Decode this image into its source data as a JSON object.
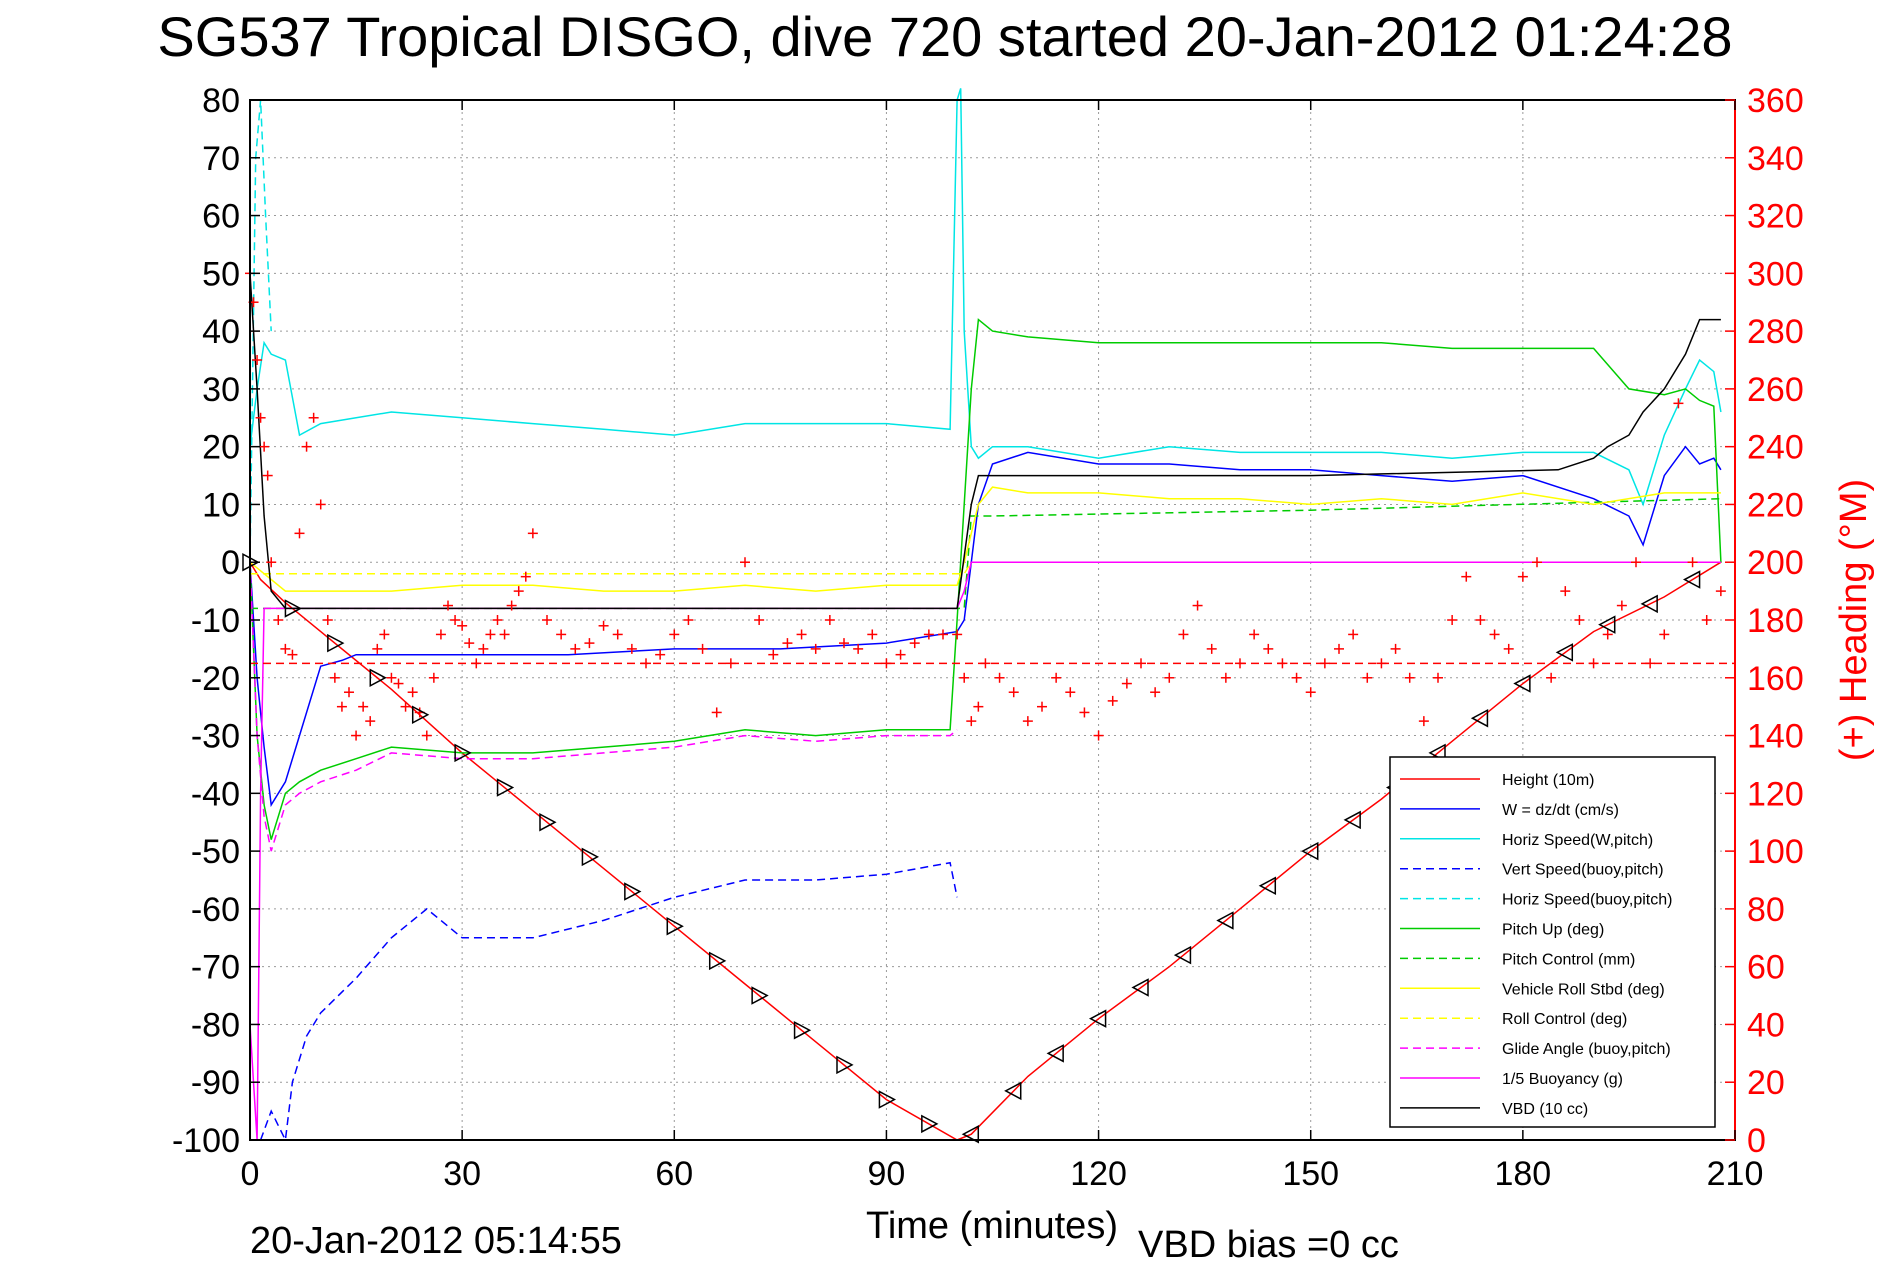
{
  "chart_data": {
    "type": "line",
    "title": "SG537 Tropical DISGO, dive 720 started 20-Jan-2012 01:24:28",
    "xlabel": "Time (minutes)",
    "ylabel_right": "(+) Heading (°M)",
    "xlim": [
      0,
      210
    ],
    "ylim": [
      -100,
      80
    ],
    "ylim_right": [
      0,
      360
    ],
    "x_ticks": [
      "0",
      "30",
      "60",
      "90",
      "120",
      "150",
      "180",
      "210"
    ],
    "y_ticks": [
      "80",
      "70",
      "60",
      "50",
      "40",
      "30",
      "20",
      "10",
      "0",
      "-10",
      "-20",
      "-30",
      "-40",
      "-50",
      "-60",
      "-70",
      "-80",
      "-90",
      "-100"
    ],
    "y_ticks_right": [
      "360",
      "340",
      "320",
      "300",
      "280",
      "260",
      "240",
      "220",
      "200",
      "180",
      "160",
      "140",
      "120",
      "100",
      "80",
      "60",
      "40",
      "20",
      "0"
    ],
    "grid": true,
    "legend_position": "bottom-right",
    "footer_left": "20-Jan-2012 05:14:55",
    "footer_right": "VBD bias =0 cc",
    "series": [
      {
        "name": "Height (10m)",
        "color": "#ff0000",
        "style": "solid",
        "x": [
          0,
          1.5,
          5,
          10,
          20,
          30,
          40,
          50,
          60,
          70,
          80,
          90,
          100,
          102,
          110,
          120,
          130,
          140,
          150,
          160,
          170,
          180,
          190,
          200,
          208
        ],
        "y": [
          0,
          -3,
          -7,
          -12,
          -22,
          -33,
          -43,
          -53,
          -63,
          -73,
          -83,
          -93,
          -100,
          -99,
          -89,
          -79,
          -70,
          -60,
          -50,
          -41,
          -31,
          -21,
          -12,
          -6,
          0
        ]
      },
      {
        "name": "W = dz/dt (cm/s)",
        "color": "#0000ff",
        "style": "solid",
        "x": [
          0,
          1,
          2,
          3,
          5,
          7,
          10,
          13,
          15,
          20,
          30,
          45,
          60,
          75,
          90,
          100,
          101,
          102,
          103,
          105,
          110,
          120,
          130,
          140,
          150,
          160,
          170,
          180,
          190,
          195,
          197,
          200,
          203,
          205,
          207,
          208
        ],
        "y": [
          0,
          -20,
          -32,
          -42,
          -38,
          -30,
          -18,
          -17,
          -16,
          -16,
          -16,
          -16,
          -15,
          -15,
          -14,
          -12,
          -10,
          0,
          10,
          17,
          19,
          17,
          17,
          16,
          16,
          15,
          14,
          15,
          11,
          8,
          3,
          15,
          20,
          17,
          18,
          16
        ]
      },
      {
        "name": "Horiz Speed(W,pitch)",
        "color": "#00e5e5",
        "style": "solid",
        "x": [
          0,
          1,
          2,
          3,
          5,
          7,
          10,
          15,
          20,
          30,
          40,
          50,
          60,
          70,
          80,
          90,
          99,
          100,
          100.5,
          101,
          102,
          103,
          105,
          110,
          120,
          130,
          140,
          150,
          160,
          170,
          180,
          190,
          195,
          197,
          200,
          203,
          205,
          207,
          208
        ],
        "y": [
          20,
          30,
          38,
          36,
          35,
          22,
          24,
          25,
          26,
          25,
          24,
          23,
          22,
          24,
          24,
          24,
          23,
          80,
          82,
          40,
          20,
          18,
          20,
          20,
          18,
          20,
          19,
          19,
          19,
          18,
          19,
          19,
          16,
          10,
          22,
          30,
          35,
          33,
          26
        ]
      },
      {
        "name": "Vert Speed(buoy,pitch)",
        "color": "#0000ff",
        "style": "dashed",
        "x": [
          1.5,
          3,
          5,
          6,
          8,
          10,
          15,
          20,
          25,
          30,
          40,
          50,
          60,
          70,
          80,
          90,
          99,
          100
        ],
        "y": [
          -100,
          -95,
          -100,
          -90,
          -82,
          -78,
          -72,
          -65,
          -60,
          -65,
          -65,
          -62,
          -58,
          -55,
          -55,
          -54,
          -52,
          -58
        ]
      },
      {
        "name": "Horiz Speed(buoy,pitch)",
        "color": "#00e5e5",
        "style": "dashed",
        "x": [
          0,
          0.8,
          1.5,
          2.2,
          3
        ],
        "y": [
          0,
          70,
          80,
          60,
          40
        ]
      },
      {
        "name": "Pitch Up (deg)",
        "color": "#00cc00",
        "style": "solid",
        "x": [
          0,
          1,
          2,
          3,
          5,
          7,
          10,
          15,
          20,
          30,
          40,
          50,
          60,
          70,
          80,
          90,
          99,
          100,
          101,
          102,
          103,
          105,
          110,
          120,
          130,
          140,
          150,
          160,
          170,
          180,
          190,
          195,
          200,
          203,
          205,
          207,
          208
        ],
        "y": [
          0,
          -30,
          -42,
          -48,
          -40,
          -38,
          -36,
          -34,
          -32,
          -33,
          -33,
          -32,
          -31,
          -29,
          -30,
          -29,
          -29,
          -10,
          10,
          30,
          42,
          40,
          39,
          38,
          38,
          38,
          38,
          38,
          37,
          37,
          37,
          30,
          29,
          30,
          28,
          27,
          0
        ]
      },
      {
        "name": "Pitch Control (mm)",
        "color": "#00cc00",
        "style": "dashed",
        "x": [
          0,
          100,
          100,
          101,
          102,
          103,
          105,
          150,
          208
        ],
        "y": [
          -8,
          -8,
          -8,
          -8,
          8,
          8,
          8,
          9,
          11
        ]
      },
      {
        "name": "Vehicle Roll Stbd (deg)",
        "color": "#ffff00",
        "style": "solid",
        "x": [
          0,
          5,
          10,
          20,
          30,
          40,
          50,
          60,
          70,
          80,
          90,
          100,
          101,
          102,
          103,
          105,
          110,
          120,
          130,
          140,
          150,
          160,
          170,
          180,
          190,
          200,
          208
        ],
        "y": [
          0,
          -5,
          -5,
          -5,
          -4,
          -4,
          -5,
          -5,
          -4,
          -5,
          -4,
          -4,
          0,
          5,
          10,
          13,
          12,
          12,
          11,
          11,
          10,
          11,
          10,
          12,
          10,
          12,
          12
        ]
      },
      {
        "name": "Roll Control (deg)",
        "color": "#ffff00",
        "style": "dashed",
        "x": [
          0,
          100,
          101,
          102,
          208
        ],
        "y": [
          -2,
          -2,
          -2,
          0,
          0
        ]
      },
      {
        "name": "Glide Angle (buoy,pitch)",
        "color": "#ff00ff",
        "style": "dashed",
        "x": [
          0,
          1,
          2,
          3,
          5,
          7,
          10,
          15,
          20,
          30,
          40,
          50,
          60,
          70,
          80,
          90,
          99,
          100
        ],
        "y": [
          0,
          -30,
          -44,
          -50,
          -42,
          -40,
          -38,
          -36,
          -33,
          -34,
          -34,
          -33,
          -32,
          -30,
          -31,
          -30,
          -30,
          -29
        ]
      },
      {
        "name": "1/5 Buoyancy (g)",
        "color": "#ff00ff",
        "style": "solid",
        "x": [
          0,
          0.5,
          1,
          1.5,
          2,
          100,
          101,
          102,
          208
        ],
        "y": [
          -80,
          -90,
          -100,
          -40,
          -8,
          -8,
          -5,
          0,
          0
        ]
      },
      {
        "name": "VBD (10 cc)",
        "color": "#000000",
        "style": "solid",
        "x": [
          0,
          1,
          2,
          3,
          5,
          100,
          102,
          103,
          105,
          150,
          185,
          190,
          192,
          195,
          197,
          200,
          203,
          205,
          208
        ],
        "y": [
          50,
          30,
          8,
          -5,
          -8,
          -8,
          10,
          15,
          15,
          15,
          16,
          18,
          20,
          22,
          26,
          30,
          36,
          42,
          42
        ]
      }
    ],
    "heading_series": {
      "name": "Heading",
      "axis": "right",
      "color": "#ff0000",
      "marker": "+",
      "reference_heading": 165,
      "x": [
        0,
        0.5,
        1,
        1.5,
        2,
        2.5,
        3,
        4,
        5,
        6,
        7,
        8,
        9,
        10,
        11,
        12,
        13,
        14,
        15,
        16,
        17,
        18,
        19,
        20,
        21,
        22,
        23,
        24,
        25,
        26,
        27,
        28,
        29,
        30,
        31,
        32,
        33,
        34,
        35,
        36,
        37,
        38,
        39,
        40,
        42,
        44,
        46,
        48,
        50,
        52,
        54,
        56,
        58,
        60,
        62,
        64,
        66,
        68,
        70,
        72,
        74,
        76,
        78,
        80,
        82,
        84,
        86,
        88,
        90,
        92,
        94,
        96,
        98,
        100,
        101,
        102,
        103,
        104,
        106,
        108,
        110,
        112,
        114,
        116,
        118,
        120,
        122,
        124,
        126,
        128,
        130,
        132,
        134,
        136,
        138,
        140,
        142,
        144,
        146,
        148,
        150,
        152,
        154,
        156,
        158,
        160,
        162,
        164,
        166,
        168,
        170,
        172,
        174,
        176,
        178,
        180,
        182,
        184,
        186,
        188,
        190,
        192,
        194,
        196,
        198,
        200,
        202,
        204,
        206,
        208
      ],
      "y": [
        300,
        290,
        270,
        250,
        240,
        230,
        200,
        180,
        170,
        168,
        210,
        240,
        250,
        220,
        180,
        160,
        150,
        155,
        140,
        150,
        145,
        170,
        175,
        160,
        158,
        150,
        155,
        148,
        140,
        160,
        175,
        185,
        180,
        178,
        172,
        165,
        170,
        175,
        180,
        175,
        185,
        190,
        195,
        210,
        180,
        175,
        170,
        172,
        178,
        175,
        170,
        165,
        168,
        175,
        180,
        170,
        148,
        165,
        200,
        180,
        168,
        172,
        175,
        170,
        180,
        172,
        170,
        175,
        165,
        168,
        172,
        175,
        175,
        175,
        160,
        145,
        150,
        165,
        160,
        155,
        145,
        150,
        160,
        155,
        148,
        140,
        152,
        158,
        165,
        155,
        160,
        175,
        185,
        170,
        160,
        165,
        175,
        170,
        165,
        160,
        155,
        165,
        170,
        175,
        160,
        165,
        170,
        160,
        145,
        160,
        180,
        195,
        180,
        175,
        170,
        195,
        200,
        160,
        190,
        180,
        165,
        175,
        185,
        200,
        165,
        175,
        255,
        200,
        180,
        190
      ]
    }
  }
}
